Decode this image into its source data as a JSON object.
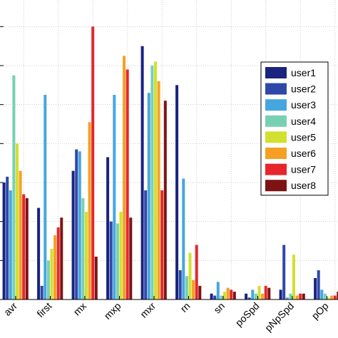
{
  "chart_data": {
    "type": "bar",
    "categories": [
      "avr",
      "first",
      "mx",
      "mxp",
      "mxr",
      "rn",
      "sn",
      "poSpd",
      "pNpSpd",
      "pOp"
    ],
    "series": [
      {
        "name": "user1",
        "color": "#1a237e",
        "values": [
          60,
          47,
          66,
          73,
          130,
          110,
          3,
          3,
          5,
          11
        ]
      },
      {
        "name": "user2",
        "color": "#283f9e",
        "values": [
          63,
          7,
          77,
          40,
          56,
          15,
          2,
          1,
          28,
          15
        ]
      },
      {
        "name": "user3",
        "color": "#3f73c4",
        "values": [
          56,
          105,
          76,
          105,
          106,
          62,
          9,
          5,
          1,
          5
        ]
      },
      {
        "name": "user4",
        "color": "#4aaadc",
        "values": [
          115,
          20,
          52,
          39,
          120,
          12,
          2,
          3,
          3,
          3
        ]
      },
      {
        "name": "user5",
        "color": "#7cd0b6",
        "values": [
          80,
          26,
          45,
          45,
          122,
          24,
          4,
          7,
          23,
          1
        ]
      },
      {
        "name": "user6",
        "color": "#d3e12f",
        "values": [
          66,
          33,
          91,
          125,
          112,
          10,
          6,
          3,
          2,
          2
        ]
      },
      {
        "name": "user7",
        "color": "#f59d1e",
        "values": [
          54,
          37,
          140,
          118,
          56,
          28,
          5,
          7,
          3,
          2
        ]
      },
      {
        "name": "user8",
        "color": "#e0242b",
        "values": [
          52,
          42,
          22,
          42,
          102,
          7,
          4,
          6,
          3,
          4
        ]
      }
    ],
    "series_extra": {
      "user8_color": "#7a1212"
    },
    "ylim": [
      0,
      150
    ],
    "grid": true,
    "legend_position": "right",
    "legend_entries": [
      "user1",
      "user2",
      "user3",
      "user4",
      "user5",
      "user6",
      "user7",
      "user8"
    ]
  }
}
